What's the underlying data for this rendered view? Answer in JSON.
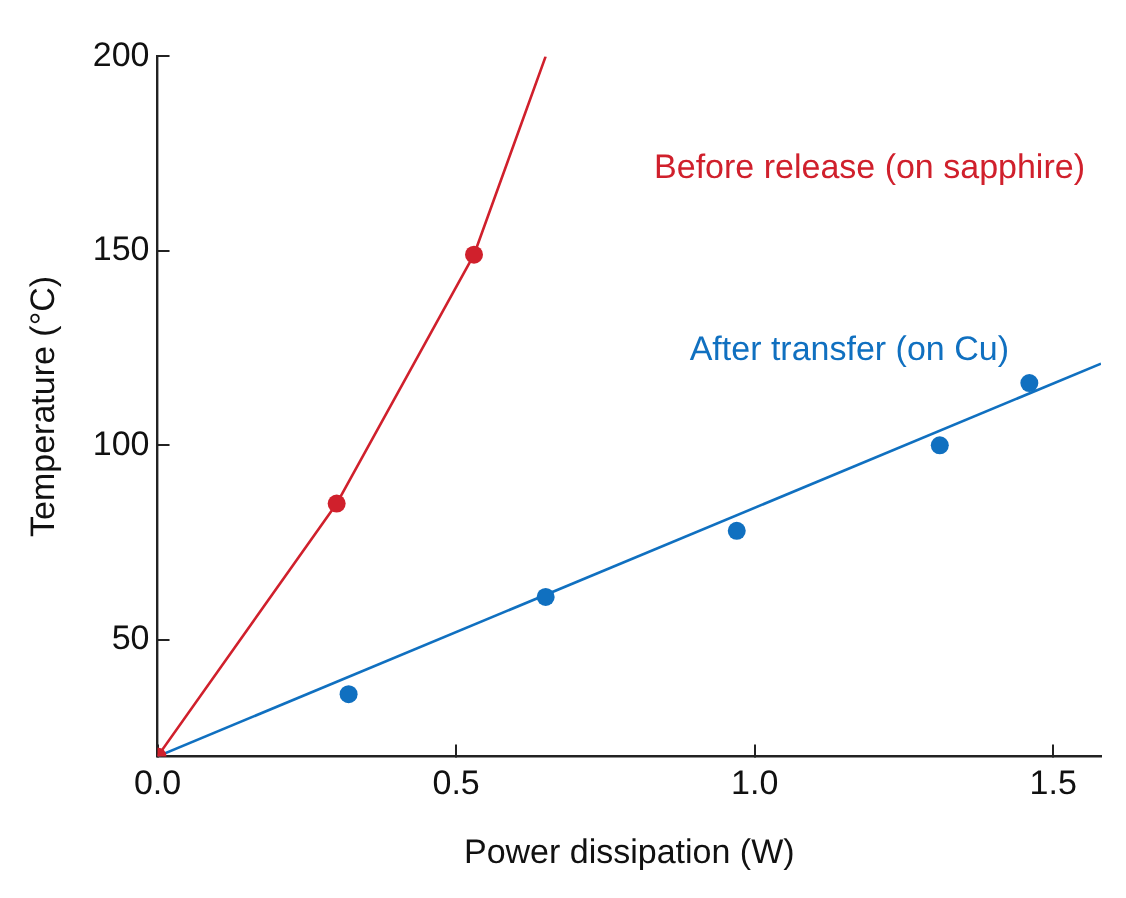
{
  "chart_data": {
    "type": "scatter",
    "xlabel": "Power dissipation (W)",
    "ylabel": "Temperature (°C)",
    "xlim": [
      0,
      1.58
    ],
    "ylim": [
      20,
      200
    ],
    "xticks": [
      {
        "value": 0,
        "label": "0.0"
      },
      {
        "value": 0.5,
        "label": "0.5"
      },
      {
        "value": 1,
        "label": "1.0"
      },
      {
        "value": 1.5,
        "label": "1.5"
      }
    ],
    "yticks": [
      50,
      100,
      150,
      200
    ],
    "grid": false,
    "legend": false,
    "marker": "circle",
    "series": [
      {
        "name": "Before release (on sapphire)",
        "color": "#d0202c",
        "x": [
          0,
          0.3,
          0.53
        ],
        "values": [
          20,
          85,
          149
        ]
      },
      {
        "type": "line",
        "marker": "none",
        "color": "#d0202c",
        "x": [
          0,
          0.3,
          0.53,
          0.65
        ],
        "values": [
          20,
          85,
          149,
          200
        ]
      },
      {
        "name": "After transfer (on Cu)",
        "color": "#1070c0",
        "x": [
          0.32,
          0.65,
          0.97,
          1.31,
          1.46
        ],
        "values": [
          36,
          61,
          78,
          100,
          116
        ]
      },
      {
        "type": "line",
        "marker": "none",
        "color": "#1070c0",
        "x": [
          0,
          1.58
        ],
        "values": [
          20,
          121
        ]
      }
    ]
  }
}
